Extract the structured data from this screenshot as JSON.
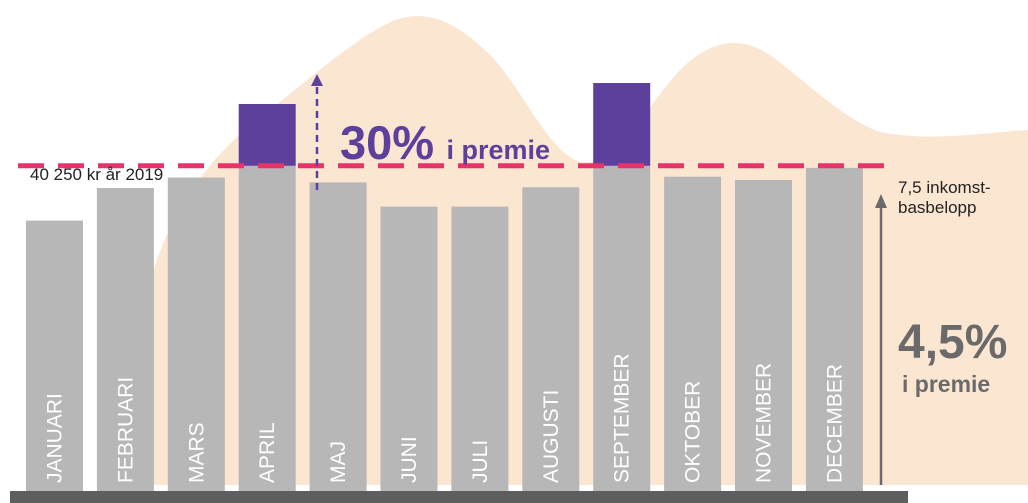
{
  "colors": {
    "bar": "#b7b7b7",
    "excess": "#5d3f9c",
    "threshold": "#e8336a",
    "background_shape": "#fbe6d2",
    "baseline": "#5e5e5e",
    "rate_text": "#6a6a6a",
    "arrow_gray": "#6a6a6a"
  },
  "chart_data": {
    "type": "bar",
    "categories": [
      "JANUARI",
      "FEBRUARI",
      "MARS",
      "APRIL",
      "MAJ",
      "JUNI",
      "JULI",
      "AUGUSTI",
      "SEPTEMBER",
      "OKTOBER",
      "NOVEMBER",
      "DECEMBER"
    ],
    "values": [
      33470,
      37500,
      38800,
      47900,
      38200,
      35200,
      35200,
      37600,
      50500,
      38900,
      38500,
      40000
    ],
    "threshold": {
      "value": 40250,
      "left_label": "40 250 kr år 2019",
      "right_label_line1": "7,5 inkomst-",
      "right_label_line2": "basbelopp"
    },
    "ylim": [
      0,
      50500
    ],
    "title": "",
    "xlabel": "",
    "ylabel": ""
  },
  "annotations": {
    "above": {
      "percent": "30%",
      "text": "i premie"
    },
    "below": {
      "percent": "4,5%",
      "text": "i premie"
    }
  }
}
